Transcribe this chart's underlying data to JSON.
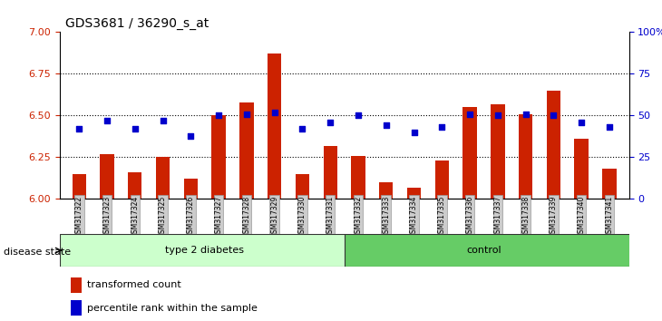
{
  "title": "GDS3681 / 36290_s_at",
  "samples": [
    "GSM317322",
    "GSM317323",
    "GSM317324",
    "GSM317325",
    "GSM317326",
    "GSM317327",
    "GSM317328",
    "GSM317329",
    "GSM317330",
    "GSM317331",
    "GSM317332",
    "GSM317333",
    "GSM317334",
    "GSM317335",
    "GSM317336",
    "GSM317337",
    "GSM317338",
    "GSM317339",
    "GSM317340",
    "GSM317341"
  ],
  "bar_values": [
    6.15,
    6.27,
    6.16,
    6.25,
    6.12,
    6.5,
    6.58,
    6.87,
    6.15,
    6.32,
    6.26,
    6.1,
    6.07,
    6.23,
    6.55,
    6.57,
    6.51,
    6.65,
    6.36,
    6.18
  ],
  "percentile_values": [
    42,
    47,
    42,
    47,
    38,
    50,
    51,
    52,
    42,
    46,
    50,
    44,
    40,
    43,
    51,
    50,
    51,
    50,
    46,
    43
  ],
  "group1_label": "type 2 diabetes",
  "group2_label": "control",
  "group1_count": 10,
  "group2_count": 10,
  "bar_color": "#cc2200",
  "percentile_color": "#0000cc",
  "ylim_left": [
    6.0,
    7.0
  ],
  "ylim_right": [
    0,
    100
  ],
  "yticks_left": [
    6.0,
    6.25,
    6.5,
    6.75,
    7.0
  ],
  "yticks_right": [
    0,
    25,
    50,
    75,
    100
  ],
  "group1_bg": "#ccffcc",
  "group2_bg": "#66cc66",
  "xticklabel_bg": "#cccccc",
  "legend_bar_label": "transformed count",
  "legend_pct_label": "percentile rank within the sample",
  "disease_state_label": "disease state",
  "bar_width": 0.5
}
